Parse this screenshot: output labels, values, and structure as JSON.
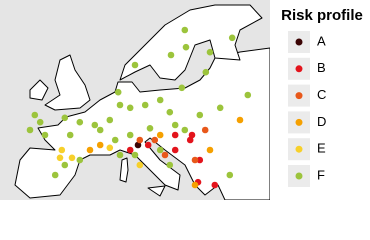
{
  "chart_data": {
    "type": "scatter",
    "legend_title": "Risk profile",
    "xlim": [
      -12,
      33
    ],
    "ylim": [
      35,
      71
    ],
    "series": [
      {
        "name": "A",
        "color": "#3b0404",
        "x": [
          11.0
        ],
        "y": [
          44.9
        ]
      },
      {
        "name": "B",
        "color": "#e3141c",
        "x": [
          17.2,
          20.0,
          19.7,
          21.3,
          17.2,
          12.7,
          21.0,
          23.8,
          9.7
        ],
        "y": [
          46.7,
          46.7,
          45.8,
          42.2,
          44.0,
          44.9,
          38.2,
          37.7,
          44.0
        ]
      },
      {
        "name": "C",
        "color": "#e8581a",
        "x": [
          13.8,
          22.2,
          15.5,
          11.3,
          20.5
        ],
        "y": [
          45.8,
          47.6,
          43.1,
          45.8,
          42.2
        ]
      },
      {
        "name": "D",
        "color": "#f5a000",
        "x": [
          28.0,
          3.0,
          14.7,
          23.0,
          20.5,
          4.7
        ],
        "y": [
          49.4,
          44.0,
          46.7,
          44.0,
          37.7,
          44.9
        ]
      },
      {
        "name": "E",
        "color": "#f7d02a",
        "x": [
          -2.0,
          -1.7,
          0.0,
          6.3,
          11.3
        ],
        "y": [
          42.6,
          44.0,
          42.6,
          44.4,
          41.3
        ]
      },
      {
        "name": "F",
        "color": "#9cc43c",
        "x": [
          18.8,
          26.7,
          23.0,
          22.3,
          18.3,
          16.5,
          19.0,
          10.5,
          7.7,
          9.7,
          12.2,
          14.7,
          16.3,
          21.3,
          24.7,
          29.3,
          6.3,
          3.8,
          1.3,
          -1.2,
          -5.3,
          -7.0,
          -4.5,
          -0.3,
          4.7,
          7.2,
          9.7,
          13.0,
          17.2,
          18.8,
          8.0,
          10.5,
          14.7,
          16.3,
          1.3,
          -1.2,
          -2.8,
          26.3,
          -6.2,
          8.0
        ],
        "y": [
          65.6,
          64.2,
          61.6,
          58.0,
          55.2,
          61.1,
          62.5,
          59.3,
          54.4,
          51.6,
          52.1,
          53.0,
          50.8,
          50.3,
          51.6,
          53.9,
          49.4,
          48.5,
          49.0,
          49.8,
          49.0,
          47.6,
          46.7,
          46.7,
          47.6,
          45.8,
          46.7,
          47.9,
          48.5,
          47.6,
          43.1,
          43.1,
          44.0,
          41.3,
          42.2,
          41.3,
          39.5,
          39.5,
          50.3,
          52.1
        ]
      }
    ]
  }
}
